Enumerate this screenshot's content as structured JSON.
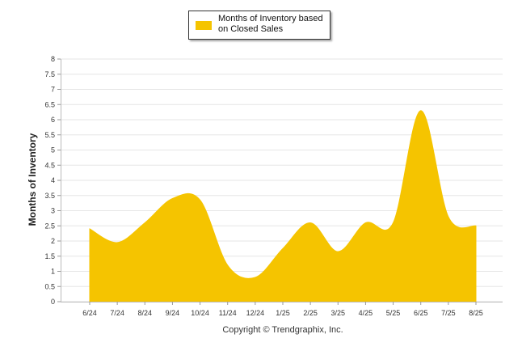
{
  "chart_data": {
    "type": "area",
    "categories": [
      "6/24",
      "7/24",
      "8/24",
      "9/24",
      "10/24",
      "11/24",
      "12/24",
      "1/25",
      "2/25",
      "3/25",
      "4/25",
      "5/25",
      "6/25",
      "7/25",
      "8/25"
    ],
    "series": [
      {
        "name": "Months of Inventory based on Closed Sales",
        "values": [
          2.4,
          1.95,
          2.6,
          3.4,
          3.35,
          1.2,
          0.8,
          1.75,
          2.6,
          1.65,
          2.6,
          2.6,
          6.3,
          2.8,
          2.5
        ]
      }
    ],
    "ylabel": "Months of Inventory",
    "xlabel": "",
    "ylim": [
      0,
      8
    ],
    "yticks": [
      "0",
      "0.5",
      "1",
      "1.5",
      "2",
      "2.5",
      "3",
      "3.5",
      "4",
      "4.5",
      "5",
      "5.5",
      "6",
      "6.5",
      "7",
      "7.5",
      "8"
    ],
    "grid": true,
    "legend_position": "top-center",
    "color": "#F5C400"
  },
  "legend": {
    "label": "Months of Inventory based on Closed Sales"
  },
  "footer": {
    "copyright": "Copyright © Trendgraphix, Inc."
  }
}
